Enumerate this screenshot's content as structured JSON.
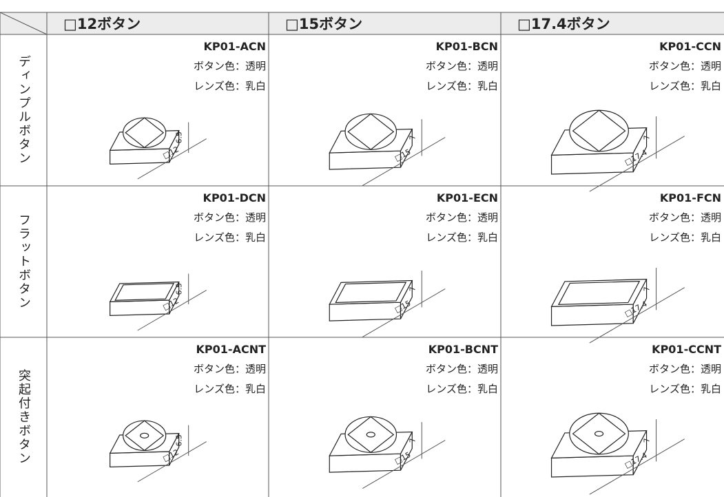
{
  "table": {
    "columns": [
      "□12ボタン",
      "□15ボタン",
      "□17.4ボタン"
    ],
    "rows": [
      {
        "label": "ディンプルボタン",
        "cells": [
          {
            "model": "KP01-ACN",
            "button_color": "ボタン色：透明",
            "lens_color": "レンズ色：乳白",
            "height": "6.5",
            "width": "□12"
          },
          {
            "model": "KP01-BCN",
            "button_color": "ボタン色：透明",
            "lens_color": "レンズ色：乳白",
            "height": "7",
            "width": "□15"
          },
          {
            "model": "KP01-CCN",
            "button_color": "ボタン色：透明",
            "lens_color": "レンズ色：乳白",
            "height": "7",
            "width": "□17.4"
          }
        ]
      },
      {
        "label": "フラットボタン",
        "cells": [
          {
            "model": "KP01-DCN",
            "button_color": "ボタン色：透明",
            "lens_color": "レンズ色：乳白",
            "height": "6.5",
            "width": "□12"
          },
          {
            "model": "KP01-ECN",
            "button_color": "ボタン色：透明",
            "lens_color": "レンズ色：乳白",
            "height": "7",
            "width": "□15"
          },
          {
            "model": "KP01-FCN",
            "button_color": "ボタン色：透明",
            "lens_color": "レンズ色：乳白",
            "height": "7",
            "width": "□17.4"
          }
        ]
      },
      {
        "label": "突起付きボタン",
        "cells": [
          {
            "model": "KP01-ACNT",
            "button_color": "ボタン色：透明",
            "lens_color": "レンズ色：乳白",
            "height": "6.5",
            "width": "□12"
          },
          {
            "model": "KP01-BCNT",
            "button_color": "ボタン色：透明",
            "lens_color": "レンズ色：乳白",
            "height": "7",
            "width": "□15"
          },
          {
            "model": "KP01-CCNT",
            "button_color": "ボタン色：透明",
            "lens_color": "レンズ色：乳白",
            "height": "7",
            "width": "□17.4"
          }
        ]
      }
    ]
  }
}
